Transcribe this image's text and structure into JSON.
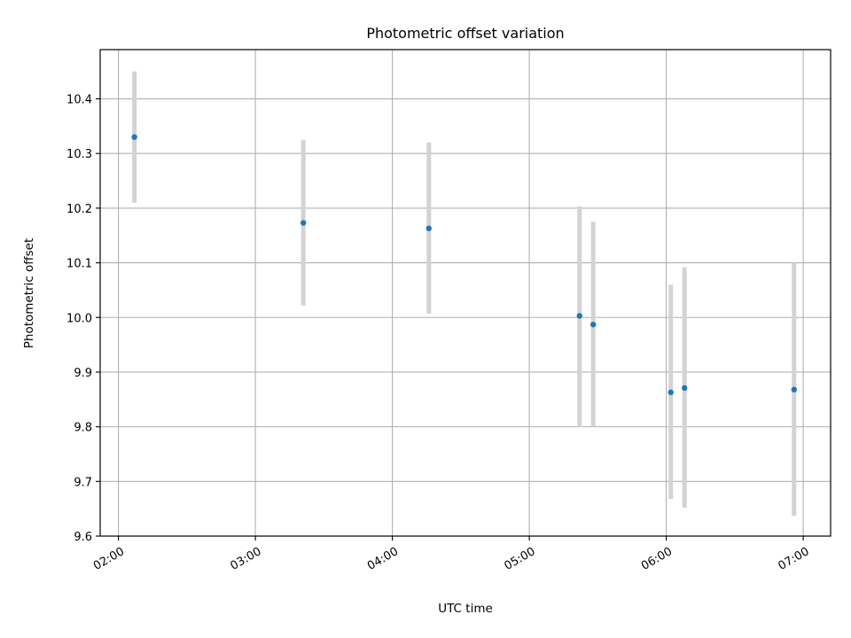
{
  "chart_data": {
    "type": "scatter",
    "title": "Photometric offset variation",
    "xlabel": "UTC time",
    "ylabel": "Photometric offset",
    "xlim": [
      "01:52",
      "07:12"
    ],
    "ylim": [
      9.6,
      10.49
    ],
    "x_ticks": [
      "02:00",
      "03:00",
      "04:00",
      "05:00",
      "06:00",
      "07:00"
    ],
    "y_ticks": [
      "9.6",
      "9.7",
      "9.8",
      "9.9",
      "10.0",
      "10.1",
      "10.2",
      "10.3",
      "10.4"
    ],
    "grid": true,
    "colors": {
      "point": "#1f77b4",
      "errorbar": "#d3d3d3",
      "grid": "#b0b0b0"
    },
    "points": [
      {
        "x": "02:07",
        "y": 10.33,
        "yerr_low": 10.21,
        "yerr_high": 10.45
      },
      {
        "x": "03:21",
        "y": 10.173,
        "yerr_low": 10.022,
        "yerr_high": 10.325
      },
      {
        "x": "04:16",
        "y": 10.163,
        "yerr_low": 10.007,
        "yerr_high": 10.32
      },
      {
        "x": "05:22",
        "y": 10.003,
        "yerr_low": 9.8,
        "yerr_high": 10.203
      },
      {
        "x": "05:28",
        "y": 9.987,
        "yerr_low": 9.8,
        "yerr_high": 10.175
      },
      {
        "x": "06:02",
        "y": 9.863,
        "yerr_low": 9.668,
        "yerr_high": 10.06
      },
      {
        "x": "06:08",
        "y": 9.871,
        "yerr_low": 9.652,
        "yerr_high": 10.092
      },
      {
        "x": "06:56",
        "y": 9.868,
        "yerr_low": 9.637,
        "yerr_high": 10.1
      }
    ]
  }
}
